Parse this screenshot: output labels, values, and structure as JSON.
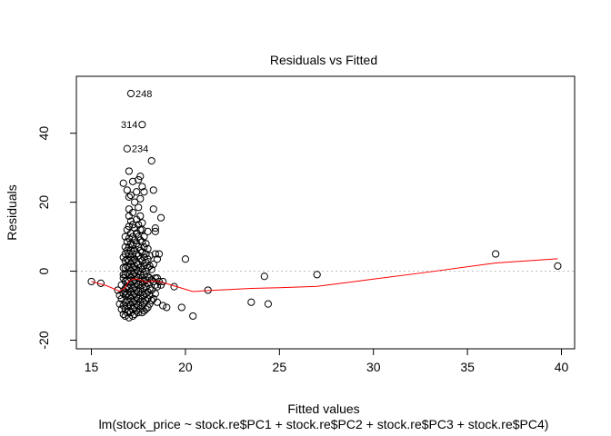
{
  "chart_data": {
    "type": "scatter",
    "title": "Residuals vs Fitted",
    "xlabel": "Fitted values",
    "subtitle": "lm(stock_price ~ stock.re$PC1 + stock.re$PC2 + stock.re$PC3 + stock.re$PC4)",
    "ylabel": "Residuals",
    "xlim": [
      14.2,
      40.7
    ],
    "ylim": [
      -22.5,
      56.5
    ],
    "x_ticks": [
      "15",
      "20",
      "25",
      "30",
      "35",
      "40"
    ],
    "y_ticks": [
      "-20",
      "0",
      "20",
      "40"
    ],
    "zero_line": 0,
    "labeled_points": [
      {
        "label": "248",
        "x": 17.1,
        "y": 51.5
      },
      {
        "label": "314",
        "x": 17.7,
        "y": 42.5
      },
      {
        "label": "234",
        "x": 16.9,
        "y": 35.5
      }
    ],
    "points": [
      [
        15.0,
        -3.0
      ],
      [
        15.5,
        -3.5
      ],
      [
        16.4,
        -5.5
      ],
      [
        16.5,
        -7.0
      ],
      [
        16.5,
        -9.5
      ],
      [
        16.6,
        -11.0
      ],
      [
        16.6,
        -8.0
      ],
      [
        16.6,
        -4.0
      ],
      [
        16.7,
        -12.5
      ],
      [
        16.7,
        -10.0
      ],
      [
        16.7,
        -6.5
      ],
      [
        16.7,
        -2.0
      ],
      [
        16.7,
        1.0
      ],
      [
        16.7,
        4.0
      ],
      [
        16.7,
        -1.0
      ],
      [
        16.7,
        25.5
      ],
      [
        16.8,
        -13.0
      ],
      [
        16.8,
        -11.0
      ],
      [
        16.8,
        -9.0
      ],
      [
        16.8,
        -7.0
      ],
      [
        16.8,
        -5.0
      ],
      [
        16.8,
        -3.0
      ],
      [
        16.8,
        -1.0
      ],
      [
        16.8,
        1.0
      ],
      [
        16.8,
        3.0
      ],
      [
        16.8,
        5.0
      ],
      [
        16.8,
        7.0
      ],
      [
        16.8,
        10.0
      ],
      [
        16.8,
        -6.0
      ],
      [
        16.9,
        -12.0
      ],
      [
        16.9,
        -10.0
      ],
      [
        16.9,
        -8.5
      ],
      [
        16.9,
        -6.5
      ],
      [
        16.9,
        -4.5
      ],
      [
        16.9,
        -2.5
      ],
      [
        16.9,
        -0.5
      ],
      [
        16.9,
        1.5
      ],
      [
        16.9,
        3.5
      ],
      [
        16.9,
        6.0
      ],
      [
        16.9,
        8.5
      ],
      [
        16.9,
        12.0
      ],
      [
        16.9,
        23.5
      ],
      [
        16.9,
        35.5
      ],
      [
        17.0,
        -13.5
      ],
      [
        17.0,
        -11.5
      ],
      [
        17.0,
        -9.0
      ],
      [
        17.0,
        -7.0
      ],
      [
        17.0,
        -5.0
      ],
      [
        17.0,
        -3.0
      ],
      [
        17.0,
        -1.0
      ],
      [
        17.0,
        1.0
      ],
      [
        17.0,
        3.0
      ],
      [
        17.0,
        5.0
      ],
      [
        17.0,
        7.0
      ],
      [
        17.0,
        9.5
      ],
      [
        17.0,
        13.0
      ],
      [
        17.0,
        16.0
      ],
      [
        17.0,
        18.0
      ],
      [
        17.0,
        21.5
      ],
      [
        17.0,
        29.0
      ],
      [
        17.1,
        -12.0
      ],
      [
        17.1,
        -10.0
      ],
      [
        17.1,
        -8.0
      ],
      [
        17.1,
        -6.0
      ],
      [
        17.1,
        -4.0
      ],
      [
        17.1,
        -2.0
      ],
      [
        17.1,
        0.0
      ],
      [
        17.1,
        2.0
      ],
      [
        17.1,
        4.0
      ],
      [
        17.1,
        6.0
      ],
      [
        17.1,
        8.0
      ],
      [
        17.1,
        11.0
      ],
      [
        17.1,
        14.5
      ],
      [
        17.1,
        22.0
      ],
      [
        17.1,
        51.5
      ],
      [
        17.2,
        -13.0
      ],
      [
        17.2,
        -11.0
      ],
      [
        17.2,
        -9.0
      ],
      [
        17.2,
        -7.0
      ],
      [
        17.2,
        -5.0
      ],
      [
        17.2,
        -3.0
      ],
      [
        17.2,
        -1.0
      ],
      [
        17.2,
        1.0
      ],
      [
        17.2,
        3.0
      ],
      [
        17.2,
        5.0
      ],
      [
        17.2,
        7.5
      ],
      [
        17.2,
        10.0
      ],
      [
        17.2,
        13.5
      ],
      [
        17.2,
        17.0
      ],
      [
        17.2,
        26.0
      ],
      [
        17.3,
        -12.5
      ],
      [
        17.3,
        -10.5
      ],
      [
        17.3,
        -8.5
      ],
      [
        17.3,
        -6.5
      ],
      [
        17.3,
        -4.5
      ],
      [
        17.3,
        -2.5
      ],
      [
        17.3,
        -0.5
      ],
      [
        17.3,
        1.5
      ],
      [
        17.3,
        3.5
      ],
      [
        17.3,
        6.0
      ],
      [
        17.3,
        9.0
      ],
      [
        17.3,
        12.5
      ],
      [
        17.3,
        20.0
      ],
      [
        17.4,
        -11.5
      ],
      [
        17.4,
        -9.5
      ],
      [
        17.4,
        -7.5
      ],
      [
        17.4,
        -5.5
      ],
      [
        17.4,
        -3.5
      ],
      [
        17.4,
        -1.5
      ],
      [
        17.4,
        0.5
      ],
      [
        17.4,
        2.5
      ],
      [
        17.4,
        5.0
      ],
      [
        17.4,
        8.0
      ],
      [
        17.4,
        11.0
      ],
      [
        17.4,
        15.0
      ],
      [
        17.4,
        23.0
      ],
      [
        17.5,
        -12.0
      ],
      [
        17.5,
        -10.0
      ],
      [
        17.5,
        -8.0
      ],
      [
        17.5,
        -6.0
      ],
      [
        17.5,
        -4.0
      ],
      [
        17.5,
        -2.0
      ],
      [
        17.5,
        0.0
      ],
      [
        17.5,
        2.0
      ],
      [
        17.5,
        4.5
      ],
      [
        17.5,
        7.0
      ],
      [
        17.5,
        10.0
      ],
      [
        17.5,
        13.5
      ],
      [
        17.5,
        18.5
      ],
      [
        17.5,
        26.5
      ],
      [
        17.6,
        -11.0
      ],
      [
        17.6,
        -9.0
      ],
      [
        17.6,
        -7.0
      ],
      [
        17.6,
        -5.0
      ],
      [
        17.6,
        -3.0
      ],
      [
        17.6,
        -1.0
      ],
      [
        17.6,
        1.0
      ],
      [
        17.6,
        3.5
      ],
      [
        17.6,
        6.0
      ],
      [
        17.6,
        9.0
      ],
      [
        17.6,
        12.0
      ],
      [
        17.6,
        16.0
      ],
      [
        17.6,
        21.0
      ],
      [
        17.6,
        27.5
      ],
      [
        17.7,
        -12.0
      ],
      [
        17.7,
        -10.0
      ],
      [
        17.7,
        -8.0
      ],
      [
        17.7,
        -6.0
      ],
      [
        17.7,
        -4.0
      ],
      [
        17.7,
        -2.0
      ],
      [
        17.7,
        0.5
      ],
      [
        17.7,
        3.0
      ],
      [
        17.7,
        5.5
      ],
      [
        17.7,
        8.5
      ],
      [
        17.7,
        12.0
      ],
      [
        17.7,
        14.0
      ],
      [
        17.7,
        24.5
      ],
      [
        17.7,
        42.5
      ],
      [
        17.8,
        -11.5
      ],
      [
        17.8,
        -9.0
      ],
      [
        17.8,
        -7.0
      ],
      [
        17.8,
        -5.0
      ],
      [
        17.8,
        -3.0
      ],
      [
        17.8,
        -1.0
      ],
      [
        17.8,
        1.5
      ],
      [
        17.8,
        4.0
      ],
      [
        17.8,
        7.0
      ],
      [
        17.8,
        10.0
      ],
      [
        17.8,
        23.0
      ],
      [
        17.9,
        -11.0
      ],
      [
        17.9,
        -8.5
      ],
      [
        17.9,
        -6.5
      ],
      [
        17.9,
        -4.5
      ],
      [
        17.9,
        -2.5
      ],
      [
        17.9,
        0.0
      ],
      [
        17.9,
        2.5
      ],
      [
        17.9,
        5.0
      ],
      [
        17.9,
        8.0
      ],
      [
        18.0,
        -10.5
      ],
      [
        18.0,
        -8.0
      ],
      [
        18.0,
        -6.0
      ],
      [
        18.0,
        -3.5
      ],
      [
        18.0,
        -1.5
      ],
      [
        18.0,
        1.0
      ],
      [
        18.0,
        3.5
      ],
      [
        18.0,
        6.5
      ],
      [
        18.0,
        11.5
      ],
      [
        18.1,
        -9.5
      ],
      [
        18.1,
        -7.0
      ],
      [
        18.1,
        -5.0
      ],
      [
        18.1,
        -2.0
      ],
      [
        18.1,
        1.5
      ],
      [
        18.1,
        4.5
      ],
      [
        18.2,
        -8.5
      ],
      [
        18.2,
        -5.5
      ],
      [
        18.2,
        -2.5
      ],
      [
        18.2,
        0.5
      ],
      [
        18.2,
        32.0
      ],
      [
        18.3,
        -8.0
      ],
      [
        18.3,
        -3.0
      ],
      [
        18.3,
        2.0
      ],
      [
        18.3,
        18.0
      ],
      [
        18.3,
        23.5
      ],
      [
        18.4,
        -6.5
      ],
      [
        18.4,
        -2.0
      ],
      [
        18.4,
        -4.0
      ],
      [
        18.4,
        5.0
      ],
      [
        18.4,
        11.5
      ],
      [
        18.4,
        12.5
      ],
      [
        18.5,
        -9.0
      ],
      [
        18.5,
        -4.5
      ],
      [
        18.5,
        -2.0
      ],
      [
        18.5,
        3.5
      ],
      [
        18.6,
        5.0
      ],
      [
        18.6,
        -3.0
      ],
      [
        18.7,
        -4.0
      ],
      [
        18.7,
        15.5
      ],
      [
        18.8,
        -10.0
      ],
      [
        18.8,
        -3.0
      ],
      [
        19.0,
        -10.5
      ],
      [
        19.4,
        -4.5
      ],
      [
        19.8,
        -10.5
      ],
      [
        20.0,
        3.5
      ],
      [
        20.4,
        -13.0
      ],
      [
        21.2,
        -5.5
      ],
      [
        23.5,
        -9.0
      ],
      [
        24.2,
        -1.5
      ],
      [
        24.4,
        -9.5
      ],
      [
        27.0,
        -1.0
      ],
      [
        36.5,
        5.0
      ],
      [
        39.8,
        1.5
      ]
    ],
    "smoother": [
      [
        15.0,
        -3.0
      ],
      [
        15.8,
        -4.2
      ],
      [
        16.5,
        -5.8
      ],
      [
        16.8,
        -4.8
      ],
      [
        17.0,
        -2.8
      ],
      [
        17.3,
        -2.2
      ],
      [
        17.6,
        -2.5
      ],
      [
        17.9,
        -3.2
      ],
      [
        18.2,
        -2.8
      ],
      [
        18.6,
        -3.0
      ],
      [
        19.0,
        -3.6
      ],
      [
        19.6,
        -4.6
      ],
      [
        20.4,
        -5.9
      ],
      [
        21.2,
        -5.6
      ],
      [
        23.5,
        -5.0
      ],
      [
        25.0,
        -4.8
      ],
      [
        27.0,
        -4.4
      ],
      [
        30.0,
        -2.3
      ],
      [
        33.0,
        -0.2
      ],
      [
        36.5,
        2.4
      ],
      [
        39.8,
        3.6
      ]
    ],
    "point_color": "#000000",
    "smoother_color": "#ff0000",
    "zero_line_color": "#bebebe"
  }
}
